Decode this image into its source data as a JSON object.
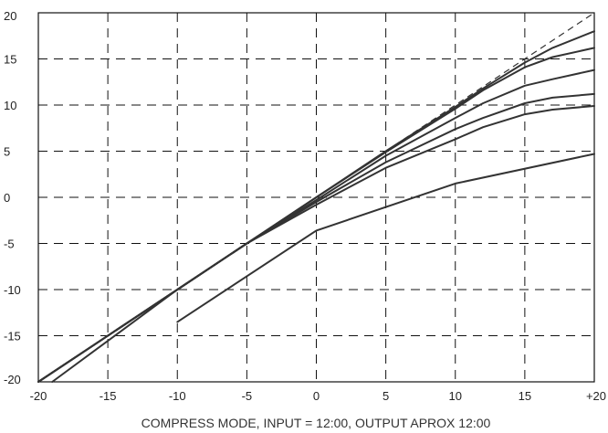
{
  "chart_data": {
    "type": "line",
    "caption": "COMPRESS MODE, INPUT = 12:00, OUTPUT APROX 12:00",
    "xlim": [
      -20,
      20
    ],
    "ylim": [
      -20,
      20
    ],
    "x_tick_labels": [
      "-20",
      "-15",
      "-10",
      "-5",
      "0",
      "5",
      "10",
      "15",
      "+20"
    ],
    "x_tick_values": [
      -20,
      -15,
      -10,
      -5,
      0,
      5,
      10,
      15,
      20
    ],
    "y_tick_labels": [
      "20",
      "15",
      "10",
      "5",
      "0",
      "-5",
      "-10",
      "-15",
      "-20"
    ],
    "y_tick_values": [
      20,
      15,
      10,
      5,
      0,
      -5,
      -10,
      -15,
      -20
    ],
    "grid": true,
    "series": [
      {
        "style": "dashed",
        "x": [
          -20,
          20
        ],
        "y": [
          -20,
          20
        ]
      },
      {
        "style": "solid",
        "x": [
          -20,
          -10,
          -5,
          0,
          5,
          10,
          12,
          15,
          17,
          20
        ],
        "y": [
          -20,
          -10,
          -5,
          0,
          5,
          9.8,
          11.8,
          14.6,
          16.2,
          18
        ]
      },
      {
        "style": "solid",
        "x": [
          -20,
          -10,
          -5,
          0,
          5,
          10,
          12,
          15,
          17,
          20
        ],
        "y": [
          -20,
          -10,
          -5,
          0,
          4.9,
          9.6,
          11.6,
          14.1,
          15.2,
          16.2
        ]
      },
      {
        "style": "solid",
        "x": [
          -20,
          -10,
          -5,
          0,
          5,
          10,
          12,
          15,
          17,
          20
        ],
        "y": [
          -20,
          -10,
          -5,
          -0.3,
          4.5,
          8.6,
          10.2,
          12.1,
          12.8,
          13.8
        ]
      },
      {
        "style": "solid",
        "x": [
          -20,
          -10,
          -5,
          0,
          5,
          10,
          12,
          15,
          17,
          20
        ],
        "y": [
          -20,
          -10,
          -5,
          -0.5,
          3.8,
          7.4,
          8.6,
          10.2,
          10.8,
          11.2
        ]
      },
      {
        "style": "solid",
        "x": [
          -19,
          -10,
          -5,
          0,
          5,
          10,
          12,
          15,
          17,
          20
        ],
        "y": [
          -20,
          -10,
          -5,
          -0.8,
          3.2,
          6.3,
          7.6,
          9.0,
          9.5,
          9.9
        ]
      },
      {
        "style": "solid",
        "x": [
          -10,
          0,
          10,
          20
        ],
        "y": [
          -13.5,
          -3.6,
          1.5,
          4.7
        ]
      }
    ]
  }
}
